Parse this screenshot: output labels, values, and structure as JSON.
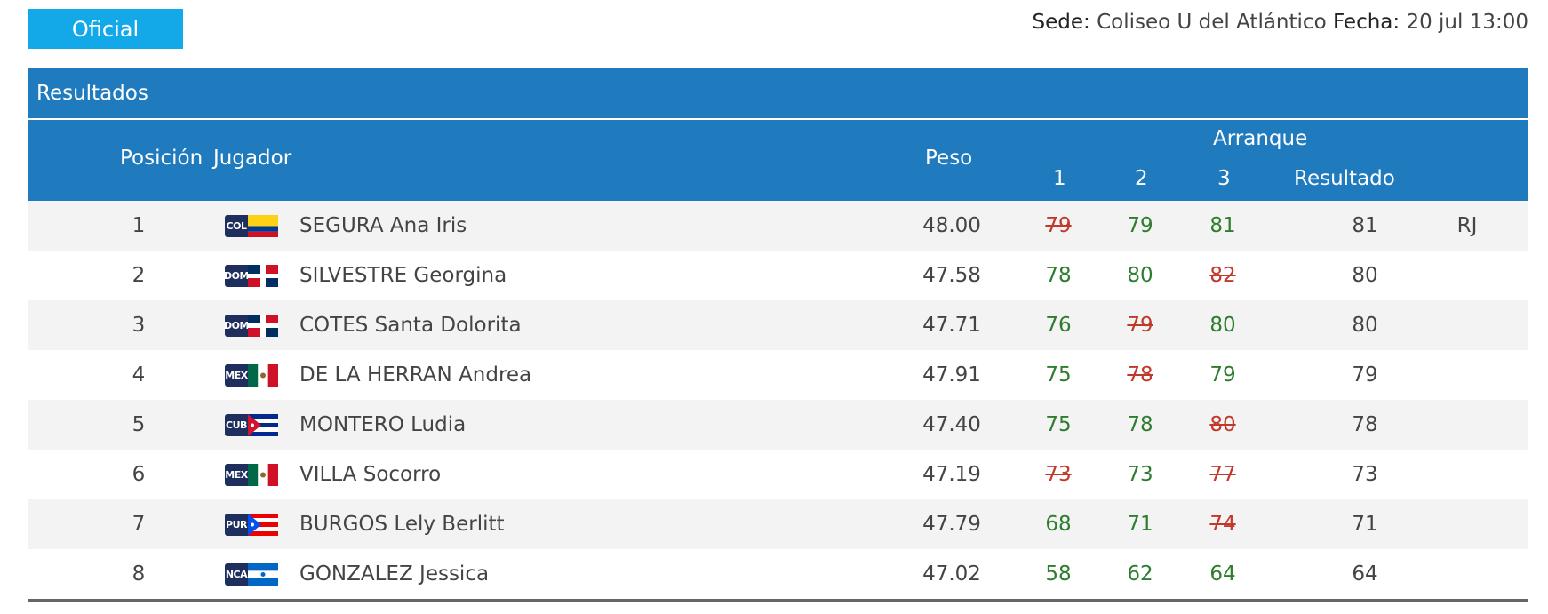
{
  "badge": "Oficial",
  "venue": {
    "sede_label": "Sede:",
    "sede_value": "Coliseo U del Atlántico",
    "fecha_label": "Fecha:",
    "fecha_value": "20 jul 13:00"
  },
  "panel_title": "Resultados",
  "columns": {
    "posicion": "Posición",
    "jugador": "Jugador",
    "peso": "Peso",
    "group": "Arranque",
    "a1": "1",
    "a2": "2",
    "a3": "3",
    "resultado": "Resultado"
  },
  "colors": {
    "accent": "#1f7bbd",
    "badge": "#13a9e8",
    "good": "#2e7d2e",
    "bad": "#c0392b"
  },
  "rows": [
    {
      "pos": "1",
      "country": "COL",
      "name": "SEGURA Ana Iris",
      "peso": "48.00",
      "a1": "79",
      "a1_ok": false,
      "a2": "79",
      "a2_ok": true,
      "a3": "81",
      "a3_ok": true,
      "result": "81",
      "note": "RJ"
    },
    {
      "pos": "2",
      "country": "DOM",
      "name": "SILVESTRE Georgina",
      "peso": "47.58",
      "a1": "78",
      "a1_ok": true,
      "a2": "80",
      "a2_ok": true,
      "a3": "82",
      "a3_ok": false,
      "result": "80",
      "note": ""
    },
    {
      "pos": "3",
      "country": "DOM",
      "name": "COTES Santa Dolorita",
      "peso": "47.71",
      "a1": "76",
      "a1_ok": true,
      "a2": "79",
      "a2_ok": false,
      "a3": "80",
      "a3_ok": true,
      "result": "80",
      "note": ""
    },
    {
      "pos": "4",
      "country": "MEX",
      "name": "DE LA HERRAN Andrea",
      "peso": "47.91",
      "a1": "75",
      "a1_ok": true,
      "a2": "78",
      "a2_ok": false,
      "a3": "79",
      "a3_ok": true,
      "result": "79",
      "note": ""
    },
    {
      "pos": "5",
      "country": "CUB",
      "name": "MONTERO Ludia",
      "peso": "47.40",
      "a1": "75",
      "a1_ok": true,
      "a2": "78",
      "a2_ok": true,
      "a3": "80",
      "a3_ok": false,
      "result": "78",
      "note": ""
    },
    {
      "pos": "6",
      "country": "MEX",
      "name": "VILLA Socorro",
      "peso": "47.19",
      "a1": "73",
      "a1_ok": false,
      "a2": "73",
      "a2_ok": true,
      "a3": "77",
      "a3_ok": false,
      "result": "73",
      "note": ""
    },
    {
      "pos": "7",
      "country": "PUR",
      "name": "BURGOS Lely Berlitt",
      "peso": "47.79",
      "a1": "68",
      "a1_ok": true,
      "a2": "71",
      "a2_ok": true,
      "a3": "74",
      "a3_ok": false,
      "result": "71",
      "note": ""
    },
    {
      "pos": "8",
      "country": "NCA",
      "name": "GONZALEZ Jessica",
      "peso": "47.02",
      "a1": "58",
      "a1_ok": true,
      "a2": "62",
      "a2_ok": true,
      "a3": "64",
      "a3_ok": true,
      "result": "64",
      "note": ""
    }
  ]
}
